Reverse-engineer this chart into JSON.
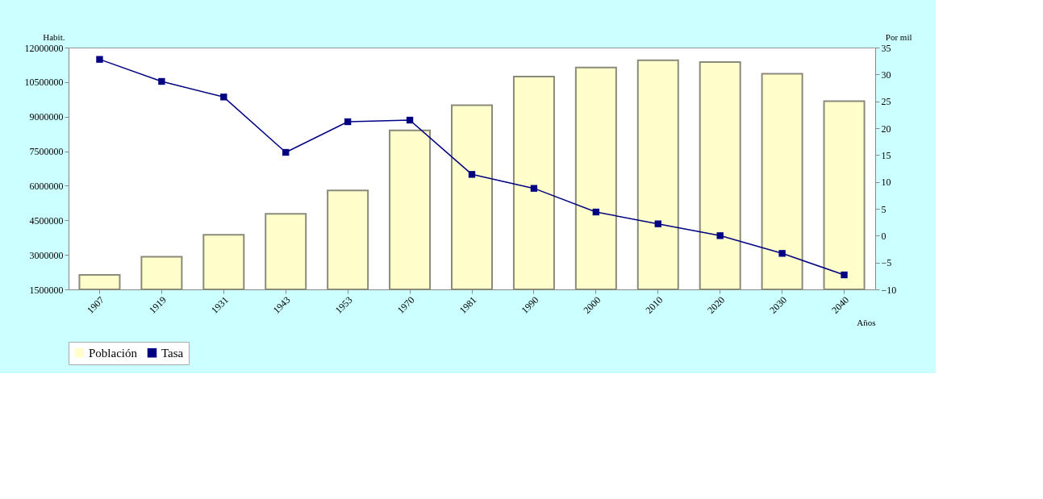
{
  "chart_data": {
    "type": "bar",
    "xlabel": "Años",
    "ylabel": "Habit.",
    "y2label": "Por mil",
    "categories": [
      "1907",
      "1919",
      "1931",
      "1943",
      "1953",
      "1970",
      "1981",
      "1990",
      "2000",
      "2010",
      "2020",
      "2030",
      "2040"
    ],
    "series": [
      {
        "name": "Población",
        "color": "#ffffcc",
        "values": [
          2130000,
          2920000,
          3870000,
          4780000,
          5800000,
          8400000,
          9500000,
          10740000,
          11130000,
          11450000,
          11370000,
          10860000,
          9670000
        ]
      },
      {
        "name": "Tasa",
        "type": "line",
        "axis": "y2",
        "color": "#000080",
        "marker": "square",
        "values": [
          32.8,
          28.7,
          25.8,
          15.5,
          21.2,
          21.5,
          11.4,
          8.8,
          4.4,
          2.2,
          0,
          -3.3,
          -7.3
        ]
      }
    ],
    "ylim": [
      1500000,
      12000000
    ],
    "yticks": [
      1500000,
      3000000,
      4500000,
      6000000,
      7500000,
      9000000,
      10500000,
      12000000
    ],
    "y2lim": [
      -10,
      35
    ],
    "y2ticks": [
      -10,
      -5,
      0,
      5,
      10,
      15,
      20,
      25,
      30,
      35
    ],
    "grid": false,
    "legend": "bottom"
  }
}
